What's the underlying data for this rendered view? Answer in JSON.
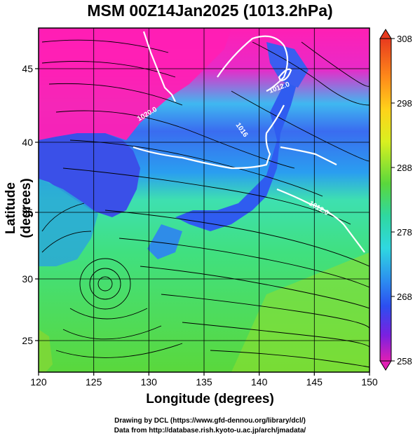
{
  "title": "MSM 00Z14Jan2025 (1013.2hPa)",
  "xlabel": "Longitude (degrees)",
  "ylabel": "Latitude  (degrees)",
  "x_ticks": [
    "120",
    "125",
    "130",
    "135",
    "140",
    "145",
    "150"
  ],
  "y_ticks": [
    "25",
    "30",
    "35",
    "40",
    "45"
  ],
  "colorbar_ticks": [
    "308",
    "298",
    "288",
    "278",
    "268",
    "258"
  ],
  "contours": [
    {
      "label": "1020.0"
    },
    {
      "label": "1016"
    },
    {
      "label": "1012.0"
    },
    {
      "label": "1012.0"
    }
  ],
  "credits": [
    "Drawing by DCL (https://www.gfd-dennou.org/library/dcl/)",
    "Data from http://database.rish.kyoto-u.ac.jp/arch/jmadata/"
  ],
  "colors": {
    "magenta": "#ff1fb4",
    "violet": "#7a20e0",
    "blue": "#2c4ef0",
    "cyan": "#2fd8e0",
    "green": "#33d24a",
    "yellow": "#e6f020",
    "orange": "#ff8a1a",
    "red": "#f03020"
  }
}
